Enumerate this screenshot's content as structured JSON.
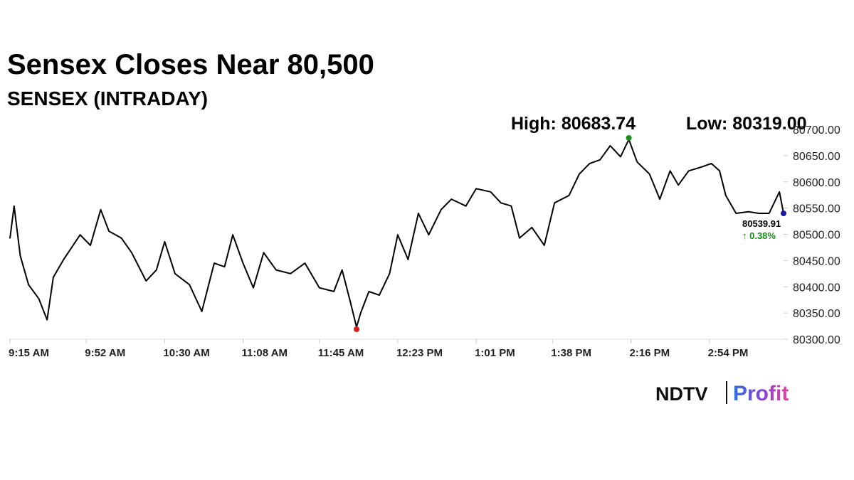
{
  "chart_data": {
    "type": "line",
    "title": "Sensex Closes Near 80,500",
    "subtitle": "SENSEX (INTRADAY)",
    "high_label": "High: 80683.74",
    "low_label": "Low: 80319.00",
    "change_label": "↑ 0.38%",
    "x": [
      "9:15 AM",
      "9:17 AM",
      "9:20 AM",
      "9:24 AM",
      "9:29 AM",
      "9:33 AM",
      "9:36 AM",
      "9:41 AM",
      "9:49 AM",
      "9:54 AM",
      "9:59 AM",
      "10:03 AM",
      "10:09 AM",
      "10:14 AM",
      "10:21 AM",
      "10:26 AM",
      "10:30 AM",
      "10:35 AM",
      "10:42 AM",
      "10:48 AM",
      "10:54 AM",
      "10:59 AM",
      "11:03 AM",
      "11:08 AM",
      "11:13 AM",
      "11:18 AM",
      "11:24 AM",
      "11:31 AM",
      "11:38 AM",
      "11:45 AM",
      "11:52 AM",
      "11:56 AM",
      "12:00 PM",
      "12:03 PM",
      "12:05 PM",
      "12:09 PM",
      "12:14 PM",
      "12:19 PM",
      "12:23 PM",
      "12:28 PM",
      "12:33 PM",
      "12:38 PM",
      "12:44 PM",
      "12:49 PM",
      "12:56 PM",
      "1:01 PM",
      "1:08 PM",
      "1:13 PM",
      "1:18 PM",
      "1:22 PM",
      "1:28 PM",
      "1:34 PM",
      "1:39 PM",
      "1:46 PM",
      "1:51 PM",
      "1:56 PM",
      "2:01 PM",
      "2:06 PM",
      "2:11 PM",
      "2:15 PM",
      "2:19 PM",
      "2:25 PM",
      "2:30 PM",
      "2:35 PM",
      "2:39 PM",
      "2:44 PM",
      "2:50 PM",
      "2:55 PM",
      "2:59 PM",
      "3:02 PM",
      "3:07 PM",
      "3:13 PM",
      "3:18 PM",
      "3:23 PM",
      "3:28 PM",
      "3:30 PM"
    ],
    "series": [
      {
        "name": "SENSEX",
        "color": "#000000",
        "values": [
          80492,
          80554,
          80459,
          80404,
          80377,
          80337,
          80418,
          80452,
          80499,
          80479,
          80547,
          80506,
          80493,
          80465,
          80411,
          80432,
          80486,
          80425,
          80404,
          80353,
          80445,
          80438,
          80499,
          80445,
          80398,
          80465,
          80432,
          80425,
          80445,
          80398,
          80391,
          80432,
          80371,
          80323,
          80350,
          80391,
          80384,
          80425,
          80499,
          80452,
          80540,
          80499,
          80547,
          80567,
          80554,
          80587,
          80581,
          80560,
          80554,
          80493,
          80513,
          80479,
          80560,
          80574,
          80615,
          80635,
          80642,
          80669,
          80648,
          80681,
          80638,
          80615,
          80567,
          80621,
          80594,
          80621,
          80628,
          80635,
          80621,
          80574,
          80540,
          80543,
          80540,
          80540,
          80581,
          80539.91
        ]
      }
    ],
    "high": 80683.74,
    "low": 80319.0,
    "xticks": [
      "9:15 AM",
      "9:52 AM",
      "10:30 AM",
      "11:08 AM",
      "11:45 AM",
      "12:23 PM",
      "1:01 PM",
      "1:38 PM",
      "2:16 PM",
      "2:54 PM"
    ],
    "ylim": [
      80300,
      80700
    ],
    "yticks": [
      {
        "value": 80300,
        "label": "80300.00"
      },
      {
        "value": 80350,
        "label": "80350.00"
      },
      {
        "value": 80400,
        "label": "80400.00"
      },
      {
        "value": 80450,
        "label": "80450.00"
      },
      {
        "value": 80500,
        "label": "80500.00"
      },
      {
        "value": 80550,
        "label": "80550.00"
      },
      {
        "value": 80600,
        "label": "80600.00"
      },
      {
        "value": 80650,
        "label": "80650.00"
      },
      {
        "value": 80700,
        "label": "80700.00"
      }
    ],
    "high_color": "#1a8a1a",
    "low_color": "#e01b1b",
    "last_color": "#1a1aa8",
    "change_color": "#1a8a1a",
    "logo": {
      "left": "NDTV",
      "right": "Profit"
    }
  }
}
